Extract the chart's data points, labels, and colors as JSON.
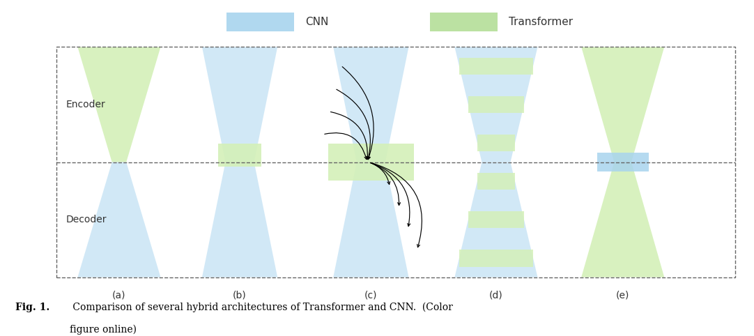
{
  "fig_width": 10.82,
  "fig_height": 4.82,
  "dpi": 100,
  "bg_color": "#ffffff",
  "cnn_color": "#a8d4ee",
  "cnn_color_light": "#cce6f6",
  "transformer_color": "#b4de98",
  "transformer_color_light": "#d4f0b8",
  "legend_cnn_label": "CNN",
  "legend_transformer_label": "Transformer",
  "encoder_label": "Encoder",
  "decoder_label": "Decoder",
  "col_labels": [
    "(a)",
    "(b)",
    "(c)",
    "(d)",
    "(e)"
  ],
  "caption_bold": "Fig. 1.",
  "caption_text": " Comparison of several hybrid architectures of Transformer and CNN.  (Color figure online)"
}
